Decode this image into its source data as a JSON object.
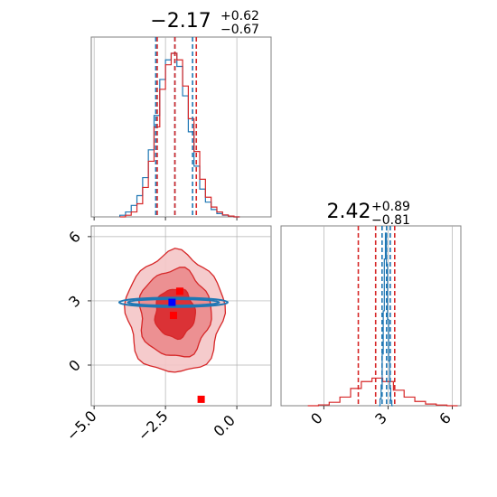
{
  "colors": {
    "series_a": "#1f77b4",
    "series_b": "#d62728",
    "grid": "#b0b0b0",
    "axis": "#808080",
    "marker_a": "#0000ff",
    "marker_b": "#ff0000"
  },
  "chart_data": [
    {
      "type": "histogram",
      "panel": "top-left",
      "title": {
        "median": "−2.17",
        "plus": "+0.62",
        "minus": "−0.67"
      },
      "xlim": [
        -5.1,
        1.2
      ],
      "grid": true,
      "x_ticks_labeled": false,
      "y_ticks_labeled": false,
      "quantile_lines": [
        {
          "series": "series_a",
          "x": [
            -2.84,
            -2.17,
            -1.55
          ],
          "style": "dashed"
        },
        {
          "series": "series_b",
          "x": [
            -2.79,
            -2.17,
            -1.42
          ],
          "style": "dashed"
        }
      ],
      "series": [
        {
          "color_key": "series_a",
          "x": [
            -4.0,
            -3.8,
            -3.6,
            -3.4,
            -3.2,
            -3.0,
            -2.8,
            -2.6,
            -2.4,
            -2.2,
            -2.0,
            -1.8,
            -1.6,
            -1.4,
            -1.2,
            -1.0,
            -0.8,
            -0.6,
            -0.4,
            -0.2,
            0.0
          ],
          "values": [
            0.01,
            0.03,
            0.07,
            0.13,
            0.24,
            0.41,
            0.62,
            0.84,
            0.96,
            1.0,
            0.92,
            0.74,
            0.52,
            0.31,
            0.17,
            0.09,
            0.045,
            0.02,
            0.01,
            0.005,
            0.0
          ]
        },
        {
          "color_key": "series_b",
          "x": [
            -4.0,
            -3.8,
            -3.6,
            -3.4,
            -3.2,
            -3.0,
            -2.8,
            -2.6,
            -2.4,
            -2.2,
            -2.0,
            -1.8,
            -1.6,
            -1.4,
            -1.2,
            -1.0,
            -0.8,
            -0.6,
            -0.4,
            -0.2,
            0.0
          ],
          "values": [
            0.0,
            0.01,
            0.03,
            0.08,
            0.18,
            0.34,
            0.55,
            0.78,
            0.93,
            1.0,
            0.96,
            0.8,
            0.6,
            0.4,
            0.23,
            0.12,
            0.06,
            0.03,
            0.012,
            0.005,
            0.0
          ]
        }
      ]
    },
    {
      "type": "histogram",
      "panel": "bottom-right",
      "title": {
        "median": "2.42",
        "plus": "+0.89",
        "minus": "−0.81"
      },
      "xlim": [
        -2.0,
        6.4
      ],
      "x_ticks": [
        "0",
        "3",
        "6"
      ],
      "x_tick_values": [
        0,
        3,
        6
      ],
      "grid": true,
      "quantile_lines": [
        {
          "series": "series_b",
          "x": [
            1.61,
            2.42,
            3.31
          ],
          "style": "dashed"
        },
        {
          "series": "series_a",
          "x": [
            2.72,
            2.93,
            3.1
          ],
          "style": "dashed"
        }
      ],
      "series": [
        {
          "color_key": "series_a",
          "x": [
            2.6,
            2.65,
            2.7,
            2.75,
            2.8,
            2.85,
            2.9,
            2.95,
            3.0,
            3.05,
            3.1,
            3.15,
            3.2
          ],
          "values": [
            0.0,
            0.04,
            0.12,
            0.3,
            0.55,
            0.85,
            1.0,
            0.82,
            0.5,
            0.26,
            0.1,
            0.03,
            0.0
          ]
        },
        {
          "color_key": "series_b",
          "x": [
            -0.5,
            0.0,
            0.5,
            1.0,
            1.5,
            2.0,
            2.5,
            3.0,
            3.5,
            4.0,
            4.5,
            5.0,
            5.5,
            6.0
          ],
          "values": [
            0.0,
            0.005,
            0.02,
            0.05,
            0.1,
            0.14,
            0.16,
            0.14,
            0.09,
            0.05,
            0.025,
            0.01,
            0.004,
            0.0
          ]
        }
      ]
    },
    {
      "type": "contour",
      "panel": "bottom-left",
      "xlim": [
        -5.1,
        1.2
      ],
      "ylim": [
        -1.9,
        6.5
      ],
      "x_ticks": [
        "−5.0",
        "−2.5",
        "0.0"
      ],
      "x_tick_values": [
        -5.0,
        -2.5,
        0.0
      ],
      "y_ticks": [
        "0",
        "3",
        "6"
      ],
      "y_tick_values": [
        0,
        3,
        6
      ],
      "grid": true,
      "series_b_contours": {
        "center": [
          -2.17,
          2.42
        ],
        "levels": [
          {
            "rx": 0.7,
            "ry": 1.15
          },
          {
            "rx": 1.25,
            "ry": 2.05
          },
          {
            "rx": 1.7,
            "ry": 2.8
          }
        ]
      },
      "series_a_contours": {
        "center": [
          -2.22,
          2.93
        ],
        "levels": [
          {
            "rx": 1.6,
            "ry": 0.15
          },
          {
            "rx": 1.9,
            "ry": 0.22
          }
        ]
      },
      "markers": [
        {
          "color_key": "marker_a",
          "x": -2.27,
          "y": 2.93
        },
        {
          "color_key": "marker_b",
          "x": -2.0,
          "y": 3.45
        },
        {
          "color_key": "marker_b",
          "x": -2.22,
          "y": 2.32
        },
        {
          "color_key": "marker_b",
          "x": -1.25,
          "y": -1.6
        }
      ]
    }
  ]
}
